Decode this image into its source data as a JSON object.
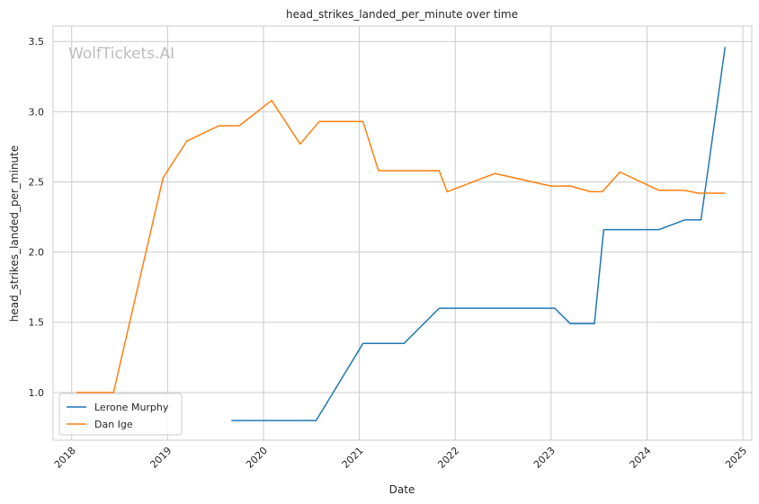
{
  "chart_data": {
    "type": "line",
    "title": "head_strikes_landed_per_minute over time",
    "xlabel": "Date",
    "ylabel": "head_strikes_landed_per_minute",
    "watermark": "WolfTickets.AI",
    "x_ticks": [
      "2018",
      "2019",
      "2020",
      "2021",
      "2022",
      "2023",
      "2024",
      "2025"
    ],
    "y_ticks": [
      "1.0",
      "1.5",
      "2.0",
      "2.5",
      "3.0",
      "3.5"
    ],
    "xlim": [
      "2017-10-22",
      "2025-02-04"
    ],
    "ylim": [
      0.66,
      3.61
    ],
    "grid": true,
    "legend_position": "lower-left",
    "series": [
      {
        "name": "Lerone Murphy",
        "color": "#1f77b4",
        "x": [
          "2019-09-01",
          "2020-07-20",
          "2021-01-15",
          "2021-06-20",
          "2021-11-01",
          "2023-01-15",
          "2023-03-15",
          "2023-06-15",
          "2023-07-20",
          "2024-02-15",
          "2024-05-25",
          "2024-07-25",
          "2024-10-25"
        ],
        "values": [
          0.8,
          0.8,
          1.35,
          1.35,
          1.6,
          1.6,
          1.49,
          1.49,
          2.16,
          2.16,
          2.23,
          2.23,
          3.46
        ]
      },
      {
        "name": "Dan Ige",
        "color": "#ff7f0e",
        "x": [
          "2018-01-20",
          "2018-06-09",
          "2018-12-15",
          "2019-03-15",
          "2019-07-15",
          "2019-10-01",
          "2020-02-01",
          "2020-05-20",
          "2020-08-01",
          "2021-01-15",
          "2021-03-15",
          "2021-11-01",
          "2021-12-01",
          "2022-06-01",
          "2023-01-01",
          "2023-03-15",
          "2023-06-01",
          "2023-07-15",
          "2023-09-20",
          "2024-02-15",
          "2024-05-20",
          "2024-07-15",
          "2024-10-25"
        ],
        "values": [
          1.0,
          1.0,
          2.53,
          2.79,
          2.9,
          2.9,
          3.08,
          2.77,
          2.93,
          2.93,
          2.58,
          2.58,
          2.43,
          2.56,
          2.47,
          2.47,
          2.43,
          2.43,
          2.57,
          2.44,
          2.44,
          2.42,
          2.42
        ]
      }
    ]
  }
}
